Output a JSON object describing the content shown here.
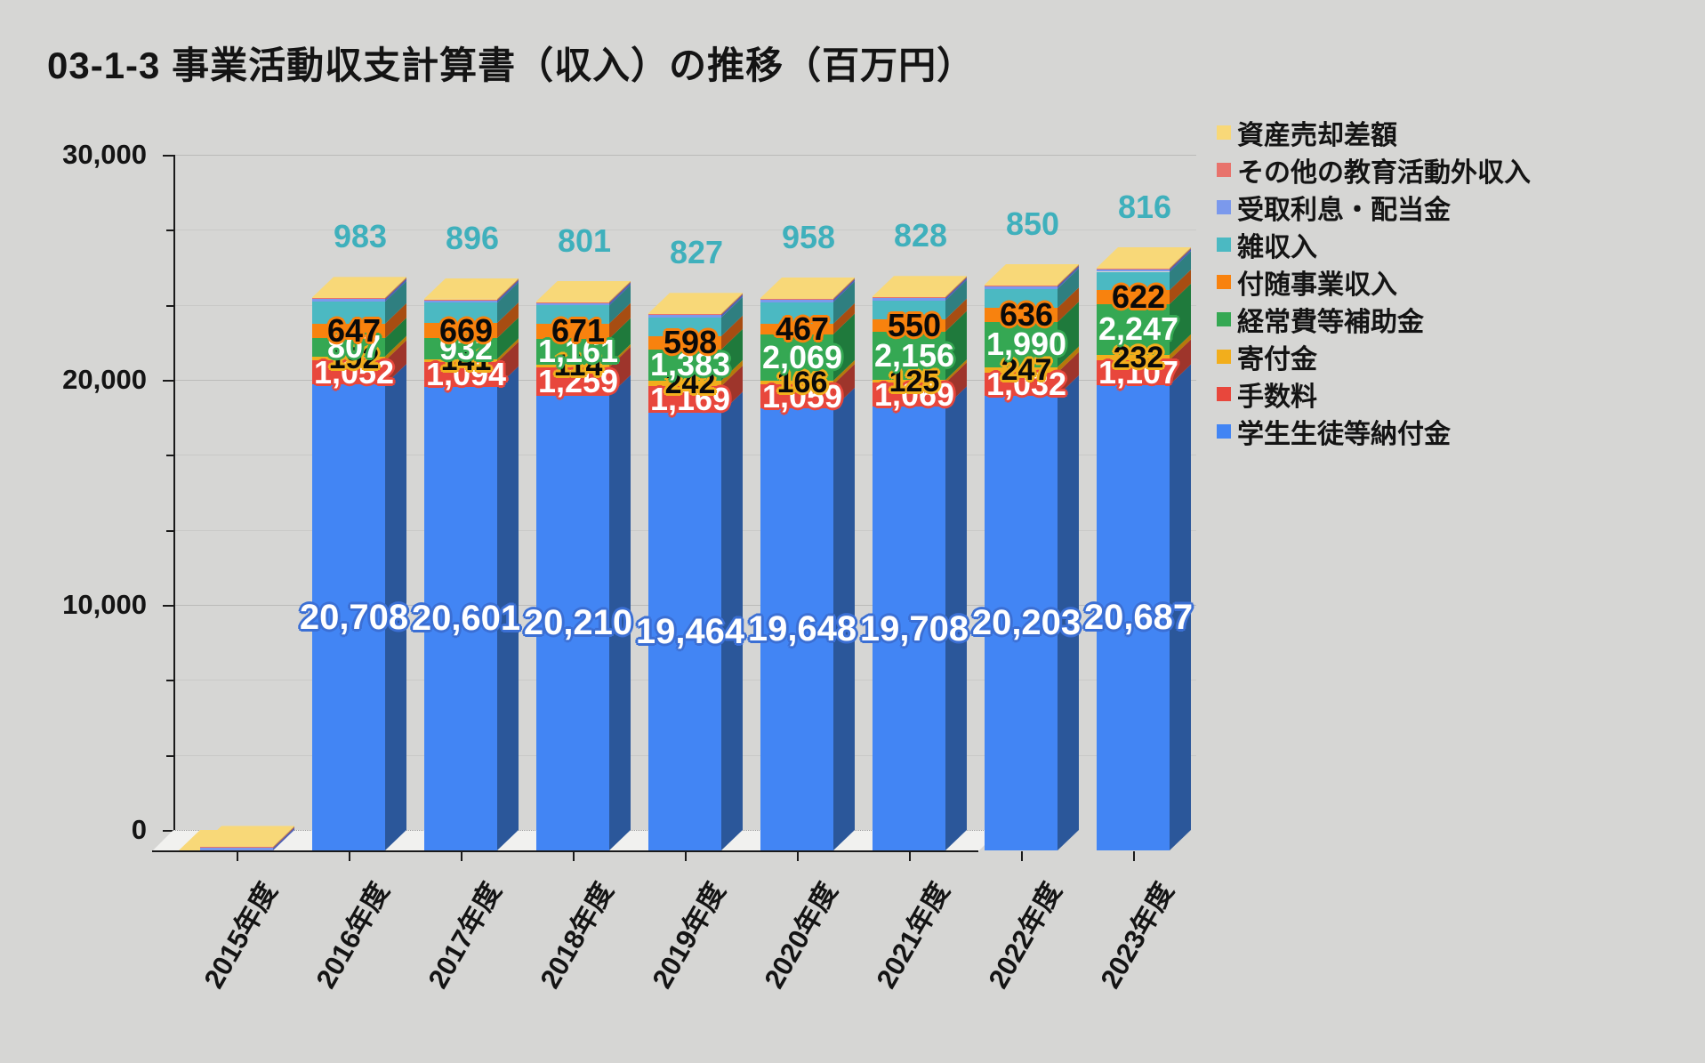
{
  "title": "03-1-3 事業活動収支計算書（収入）の推移（百万円）",
  "y_axis": {
    "ticks": [
      {
        "label": "30,000",
        "value": 30000
      },
      {
        "label": "20,000",
        "value": 20000
      },
      {
        "label": "10,000",
        "value": 10000
      },
      {
        "label": "0",
        "value": 0
      }
    ]
  },
  "legend": [
    {
      "label": "資産売却差額",
      "color": "#F8D878"
    },
    {
      "label": "その他の教育活動外収入",
      "color": "#E8736C"
    },
    {
      "label": "受取利息・配当金",
      "color": "#7B99EC"
    },
    {
      "label": "雑収入",
      "color": "#4BB9C2"
    },
    {
      "label": "付随事業収入",
      "color": "#F8820E"
    },
    {
      "label": "経常費等補助金",
      "color": "#35A853"
    },
    {
      "label": "寄付金",
      "color": "#F2AE1C"
    },
    {
      "label": "手数料",
      "color": "#E8473C"
    },
    {
      "label": "学生生徒等納付金",
      "color": "#4285F4"
    }
  ],
  "chart_data": {
    "type": "bar",
    "stacked": true,
    "effect_3d": true,
    "title": "03-1-3 事業活動収支計算書（収入）の推移（百万円）",
    "unit": "百万円",
    "ylim": [
      0,
      30000
    ],
    "grid": true,
    "legend_position": "right",
    "categories": [
      "2015年度",
      "2016年度",
      "2017年度",
      "2018年度",
      "2019年度",
      "2020年度",
      "2021年度",
      "2022年度",
      "2023年度"
    ],
    "series": [
      {
        "name": "学生生徒等納付金",
        "color": "#4285F4",
        "side_color": "#2B579A",
        "label": {
          "color": "#FFFFFF",
          "outline": "#3B6FD4",
          "size": 40
        },
        "values": [
          0,
          20708,
          20601,
          20210,
          19464,
          19648,
          19708,
          20203,
          20687
        ]
      },
      {
        "name": "手数料",
        "color": "#E8473C",
        "side_color": "#9E352B",
        "label": {
          "color": "#FFFFFF",
          "outline": "#E8473C",
          "size": 36
        },
        "show_zero_2015": true,
        "values": [
          0,
          1052,
          1094,
          1259,
          1169,
          1059,
          1069,
          1032,
          1107
        ]
      },
      {
        "name": "寄付金",
        "color": "#F2AE1C",
        "side_color": "#B5790A",
        "label": {
          "color": "#0A0A0A",
          "outline": "#F2AE1C",
          "size": 34
        },
        "values": [
          0,
          192,
          141,
          114,
          242,
          166,
          125,
          247,
          232
        ]
      },
      {
        "name": "経常費等補助金",
        "color": "#35A853",
        "side_color": "#1F7A3C",
        "label": {
          "color": "#FFFFFF",
          "outline": "#35A853",
          "size": 36
        },
        "values": [
          0,
          807,
          932,
          1161,
          1383,
          2069,
          2156,
          1990,
          2247
        ]
      },
      {
        "name": "付随事業収入",
        "color": "#F8820E",
        "side_color": "#A74D12",
        "label": {
          "color": "#0A0A0A",
          "outline": "#F8820E",
          "size": 36
        },
        "show_zero_2015": true,
        "values": [
          0,
          647,
          669,
          671,
          598,
          467,
          550,
          636,
          622
        ]
      },
      {
        "name": "雑収入",
        "color": "#4BB9C2",
        "side_color": "#2F7F80",
        "label": {
          "color": "#3FB0BC",
          "outline": null,
          "size": 36,
          "position": "above"
        },
        "show_zero_2015": true,
        "values": [
          0,
          983,
          896,
          801,
          827,
          958,
          828,
          850,
          816
        ]
      },
      {
        "name": "受取利息・配当金",
        "color": "#7B99EC",
        "side_color": "#4A5FB5",
        "values": null
      },
      {
        "name": "その他の教育活動外収入",
        "color": "#E8736C",
        "side_color": "#B04A42",
        "values": null
      },
      {
        "name": "資産売却差額",
        "color": "#F8D878",
        "side_color": "#C9A94E",
        "values": null
      }
    ]
  }
}
